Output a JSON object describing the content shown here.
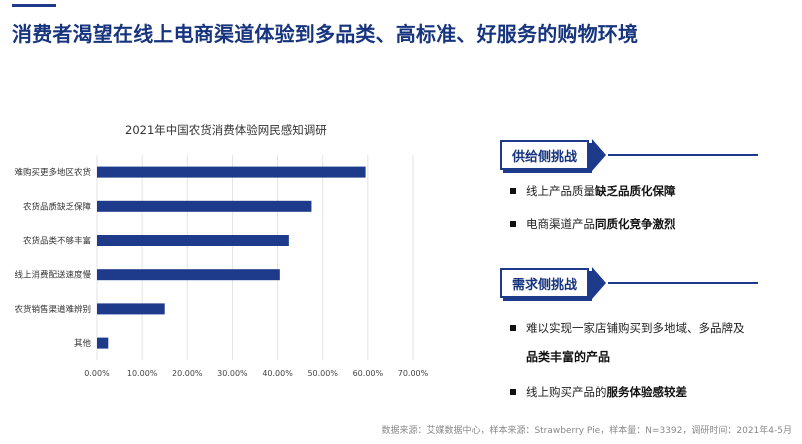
{
  "header": {
    "title": "消费者渴望在线上电商渠道体验到多品类、高标准、好服务的购物环境"
  },
  "chart_data": {
    "type": "bar",
    "orientation": "horizontal",
    "title": "2021年中国农货消费体验网民感知调研",
    "categories": [
      "难购买更多地区农货",
      "农货品质缺乏保障",
      "农货品类不够丰富",
      "线上消费配送速度慢",
      "农货销售渠道难辨别",
      "其他"
    ],
    "values": [
      59.5,
      47.5,
      42.5,
      40.5,
      15.0,
      2.5
    ],
    "xlim": [
      0,
      70
    ],
    "xticks": [
      "0.00%",
      "10.00%",
      "20.00%",
      "30.00%",
      "40.00%",
      "50.00%",
      "60.00%",
      "70.00%"
    ],
    "bar_color": "#1e3a8a",
    "grid": true
  },
  "panels": {
    "supply": {
      "title": "供给侧挑战",
      "bullets": [
        {
          "plain": "线上产品质量",
          "bold": "缺乏品质化保障"
        },
        {
          "plain": "电商渠道产品",
          "bold": "同质化竞争激烈"
        }
      ]
    },
    "demand": {
      "title": "需求侧挑战",
      "bullets": [
        {
          "plain": "难以实现一家店铺购买到多地域、多品牌及",
          "bold": "品类丰富的产品"
        },
        {
          "plain": "线上购买产品的",
          "bold": "服务体验感较差"
        }
      ]
    }
  },
  "footer": {
    "source": "数据来源：艾媒数据中心，样本来源：Strawberry Pie，样本量：N=3392，调研时间：2021年4-5月"
  }
}
